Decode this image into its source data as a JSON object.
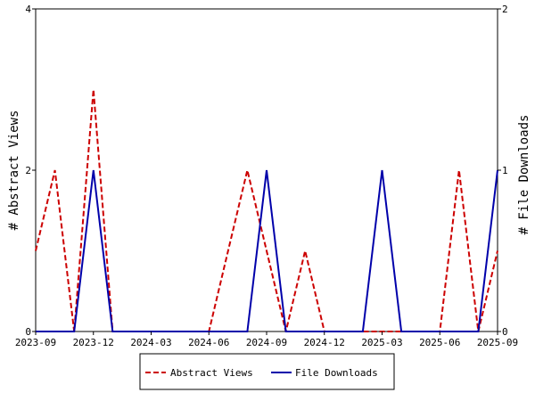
{
  "chart_data": {
    "type": "line",
    "x": [
      "2023-09",
      "2023-10",
      "2023-11",
      "2023-12",
      "2024-01",
      "2024-02",
      "2024-03",
      "2024-04",
      "2024-05",
      "2024-06",
      "2024-07",
      "2024-08",
      "2024-09",
      "2024-10",
      "2024-11",
      "2024-12",
      "2025-01",
      "2025-02",
      "2025-03",
      "2025-04",
      "2025-05",
      "2025-06",
      "2025-07",
      "2025-08",
      "2025-09"
    ],
    "x_ticks": [
      "2023-09",
      "2023-12",
      "2024-03",
      "2024-06",
      "2024-09",
      "2024-12",
      "2025-03",
      "2025-06",
      "2025-09"
    ],
    "series": [
      {
        "name": "Abstract Views",
        "axis": "left",
        "color": "#cc0000",
        "dash": "dashed",
        "values": [
          1,
          2,
          0,
          3,
          0,
          0,
          0,
          0,
          0,
          0,
          1,
          2,
          1,
          0,
          1,
          0,
          0,
          0,
          0,
          0,
          0,
          0,
          2,
          0,
          1
        ]
      },
      {
        "name": "File Downloads",
        "axis": "right",
        "color": "#0000aa",
        "dash": "solid",
        "values": [
          0,
          0,
          0,
          1,
          0,
          0,
          0,
          0,
          0,
          0,
          0,
          0,
          1,
          0,
          0,
          0,
          0,
          0,
          1,
          0,
          0,
          0,
          0,
          0,
          1
        ]
      }
    ],
    "ylabel": "# Abstract Views",
    "ylabel_right": "# File Downloads",
    "ylim": [
      0,
      4
    ],
    "ylim_right": [
      0,
      2
    ],
    "y_ticks": [
      "0",
      "2",
      "4"
    ],
    "y_ticks_right": [
      "0",
      "1",
      "2"
    ],
    "legend_position": "bottom"
  }
}
